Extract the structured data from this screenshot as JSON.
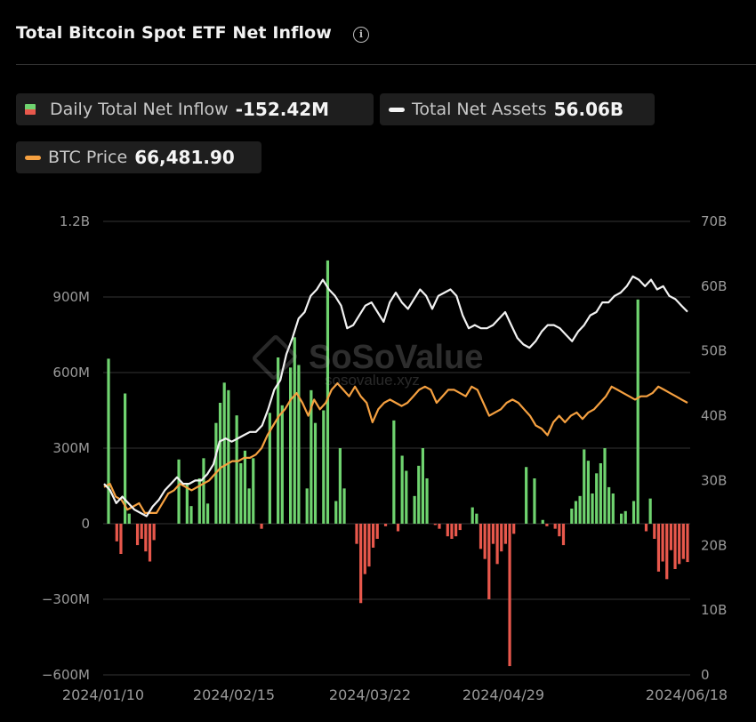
{
  "header": {
    "title": "Total Bitcoin Spot ETF Net Inflow",
    "info_icon": "i"
  },
  "legend": {
    "inflow": {
      "label": "Daily Total Net Inflow",
      "value": "-152.42M"
    },
    "assets": {
      "label": "Total Net Assets",
      "value": "56.06B"
    },
    "price": {
      "label": "BTC Price",
      "value": "66,481.90"
    }
  },
  "watermark": {
    "brand": "SoSoValue",
    "url": "sosovalue.xyz"
  },
  "colors": {
    "positive": "#6fd36f",
    "negative": "#e8584c",
    "assets_line": "#f2f2f2",
    "price_line": "#f5a040",
    "grid": "#333333",
    "axis_text": "#9a9a9a"
  },
  "chart_data": {
    "type": "bar+line",
    "title": "Total Bitcoin Spot ETF Net Inflow",
    "x_ticks": [
      "2024/01/10",
      "2024/02/15",
      "2024/03/22",
      "2024/04/29",
      "2024/06/18"
    ],
    "left_axis": {
      "ticks": [
        "1.2B",
        "900M",
        "600M",
        "300M",
        "0",
        "−300M",
        "−600M"
      ],
      "values": [
        1200,
        900,
        600,
        300,
        0,
        -300,
        -600
      ],
      "unit": "M USD"
    },
    "right_axis": {
      "ticks": [
        "70B",
        "60B",
        "50B",
        "40B",
        "30B",
        "20B",
        "10B",
        "0"
      ],
      "values": [
        70,
        60,
        50,
        40,
        30,
        20,
        10,
        0
      ],
      "unit": "B USD"
    },
    "series": [
      {
        "name": "Daily Total Net Inflow",
        "axis": "left",
        "kind": "bar",
        "values": [
          655,
          0,
          -70,
          -120,
          517,
          40,
          0,
          -85,
          -60,
          -110,
          -150,
          -65,
          0,
          0,
          0,
          0,
          0,
          255,
          0,
          160,
          70,
          0,
          180,
          260,
          80,
          0,
          400,
          480,
          560,
          530,
          0,
          430,
          240,
          290,
          140,
          260,
          0,
          -20,
          0,
          440,
          0,
          660,
          470,
          0,
          620,
          740,
          630,
          0,
          140,
          530,
          400,
          0,
          450,
          1045,
          0,
          90,
          300,
          140,
          0,
          0,
          -80,
          -315,
          -200,
          -170,
          -95,
          -60,
          0,
          -10,
          0,
          410,
          -30,
          270,
          210,
          0,
          110,
          230,
          300,
          180,
          0,
          -5,
          -20,
          0,
          -50,
          -60,
          -50,
          -25,
          0,
          0,
          65,
          40,
          -100,
          -140,
          -300,
          -80,
          -160,
          -110,
          -80,
          -565,
          -40,
          0,
          0,
          225,
          0,
          180,
          0,
          15,
          -10,
          0,
          -20,
          -50,
          -85,
          0,
          60,
          90,
          110,
          295,
          250,
          120,
          200,
          240,
          300,
          145,
          120,
          0,
          40,
          50,
          0,
          90,
          890,
          0,
          -30,
          100,
          -60,
          -190,
          -150,
          -220,
          -105,
          -180,
          -160,
          -140,
          -152
        ]
      },
      {
        "name": "Total Net Assets",
        "axis": "right",
        "kind": "line",
        "color": "#f2f2f2",
        "values": [
          29.5,
          28.5,
          26.5,
          27.5,
          26.5,
          25.5,
          25,
          24.5,
          26,
          27,
          28.5,
          29.5,
          30.5,
          29.5,
          29.5,
          30,
          30,
          31,
          32.5,
          36,
          36.5,
          36,
          36.5,
          37,
          37.5,
          37.5,
          38.5,
          41,
          44,
          45.5,
          49.5,
          52,
          55,
          56,
          58.5,
          59.5,
          61,
          59.5,
          58.5,
          57,
          53.5,
          54,
          55.5,
          57,
          57.5,
          56,
          54.5,
          57.5,
          59,
          57.5,
          56.5,
          58,
          59.5,
          58.5,
          56.5,
          58.5,
          59,
          59.5,
          58.5,
          55.5,
          53.5,
          54,
          53.5,
          53.5,
          54,
          55,
          56,
          54,
          52,
          51,
          50.5,
          51.5,
          53,
          54,
          54,
          53.5,
          52.5,
          51.5,
          53,
          54,
          55.5,
          56,
          57.5,
          57.5,
          58.5,
          59,
          60,
          61.5,
          61,
          60,
          61,
          59.5,
          60,
          58.5,
          58,
          57,
          56.06
        ]
      },
      {
        "name": "BTC Price",
        "axis": "right",
        "kind": "line",
        "color": "#f5a040",
        "values": [
          29,
          29.5,
          27.5,
          27,
          25.5,
          26,
          26.5,
          25,
          25,
          25,
          26.5,
          28,
          28.5,
          29.5,
          29,
          28.5,
          29,
          29.5,
          30,
          31,
          32,
          32.5,
          33,
          33,
          33.5,
          33.5,
          34,
          35,
          37,
          38.5,
          40,
          41,
          42.5,
          43.5,
          42,
          40,
          42.5,
          41,
          42,
          44,
          45,
          44,
          43,
          44.5,
          43,
          42,
          39,
          41,
          42,
          42.5,
          42,
          41.5,
          42,
          43,
          44,
          44.5,
          44,
          42,
          43,
          44,
          44,
          43.5,
          43,
          44.5,
          44,
          42,
          40,
          40.5,
          41,
          42,
          42.5,
          42,
          41,
          40,
          38.5,
          38,
          37,
          39,
          40,
          39,
          40,
          40.5,
          39.5,
          40.5,
          41,
          42,
          43,
          44.5,
          44,
          43.5,
          43,
          42.5,
          43,
          43,
          43.5,
          44.5,
          44,
          43.5,
          43,
          42.5,
          42
        ]
      }
    ],
    "grid": true
  }
}
